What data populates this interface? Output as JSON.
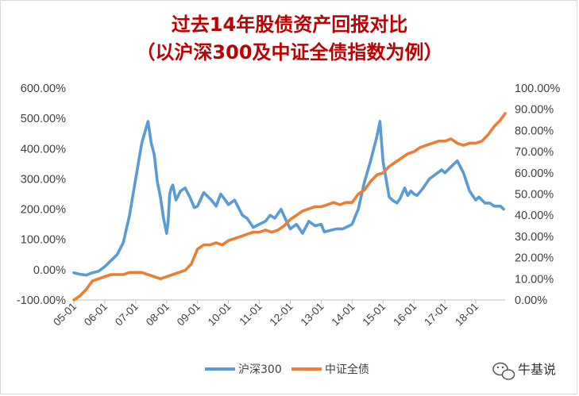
{
  "chart_data": {
    "type": "line",
    "title": "过去14年股债资产回报对比",
    "subtitle": "（以沪深300及中证全债指数为例）",
    "x_tick_labels": [
      "05-01",
      "06-01",
      "07-01",
      "08-01",
      "09-01",
      "10-01",
      "11-01",
      "12-01",
      "13-01",
      "14-01",
      "15-01",
      "16-01",
      "17-01",
      "18-01"
    ],
    "y_left": {
      "ticks": [
        "600.00%",
        "500.00%",
        "400.00%",
        "300.00%",
        "200.00%",
        "100.00%",
        "0.00%",
        "-100.00%"
      ],
      "ylim": [
        -100,
        600
      ]
    },
    "y_right": {
      "ticks": [
        "100.00%",
        "90.00%",
        "80.00%",
        "70.00%",
        "60.00%",
        "50.00%",
        "40.00%",
        "30.00%",
        "20.00%",
        "10.00%",
        "0.00%"
      ],
      "ylim": [
        0,
        100
      ]
    },
    "legend_position": "bottom",
    "series": [
      {
        "name": "沪深300",
        "axis": "left",
        "color": "#5b9bd5",
        "x": [
          2005.0,
          2005.2,
          2005.4,
          2005.6,
          2005.8,
          2006.0,
          2006.2,
          2006.4,
          2006.6,
          2006.8,
          2007.0,
          2007.2,
          2007.4,
          2007.5,
          2007.6,
          2007.7,
          2007.8,
          2007.9,
          2008.0,
          2008.05,
          2008.1,
          2008.15,
          2008.2,
          2008.3,
          2008.45,
          2008.6,
          2008.75,
          2008.9,
          2009.0,
          2009.2,
          2009.45,
          2009.6,
          2009.75,
          2009.9,
          2010.0,
          2010.2,
          2010.45,
          2010.6,
          2010.8,
          2011.0,
          2011.2,
          2011.35,
          2011.5,
          2011.7,
          2011.9,
          2012.0,
          2012.2,
          2012.4,
          2012.6,
          2012.8,
          2013.0,
          2013.1,
          2013.3,
          2013.5,
          2013.7,
          2013.9,
          2014.0,
          2014.2,
          2014.4,
          2014.6,
          2014.8,
          2014.9,
          2015.0,
          2015.1,
          2015.2,
          2015.3,
          2015.45,
          2015.55,
          2015.7,
          2015.8,
          2015.9,
          2016.0,
          2016.1,
          2016.3,
          2016.5,
          2016.7,
          2016.9,
          2017.0,
          2017.2,
          2017.4,
          2017.6,
          2017.8,
          2018.0,
          2018.1,
          2018.3,
          2018.45,
          2018.6,
          2018.8,
          2018.9
        ],
        "values": [
          -10,
          -15,
          -18,
          -10,
          -5,
          10,
          30,
          50,
          90,
          180,
          300,
          420,
          490,
          420,
          380,
          290,
          240,
          170,
          120,
          160,
          250,
          270,
          280,
          230,
          260,
          270,
          240,
          205,
          210,
          255,
          230,
          210,
          250,
          230,
          215,
          230,
          180,
          170,
          140,
          150,
          160,
          180,
          170,
          200,
          155,
          135,
          150,
          120,
          160,
          145,
          150,
          125,
          130,
          135,
          135,
          145,
          150,
          200,
          290,
          360,
          440,
          490,
          360,
          300,
          240,
          230,
          220,
          235,
          270,
          245,
          260,
          250,
          245,
          270,
          300,
          315,
          330,
          320,
          340,
          360,
          320,
          260,
          230,
          240,
          220,
          220,
          210,
          210,
          200
        ]
      },
      {
        "name": "中证全债",
        "axis": "right",
        "color": "#ed7d31",
        "x": [
          2005.0,
          2005.2,
          2005.4,
          2005.6,
          2005.8,
          2006.0,
          2006.2,
          2006.4,
          2006.6,
          2006.8,
          2007.0,
          2007.2,
          2007.4,
          2007.6,
          2007.8,
          2008.0,
          2008.2,
          2008.4,
          2008.6,
          2008.8,
          2009.0,
          2009.2,
          2009.4,
          2009.6,
          2009.8,
          2010.0,
          2010.2,
          2010.4,
          2010.6,
          2010.8,
          2011.0,
          2011.2,
          2011.4,
          2011.6,
          2011.8,
          2012.0,
          2012.2,
          2012.4,
          2012.6,
          2012.8,
          2013.0,
          2013.2,
          2013.4,
          2013.6,
          2013.8,
          2014.0,
          2014.2,
          2014.4,
          2014.6,
          2014.8,
          2015.0,
          2015.2,
          2015.4,
          2015.6,
          2015.8,
          2016.0,
          2016.2,
          2016.4,
          2016.6,
          2016.8,
          2017.0,
          2017.2,
          2017.4,
          2017.6,
          2017.8,
          2018.0,
          2018.2,
          2018.4,
          2018.6,
          2018.8,
          2018.95
        ],
        "values": [
          0,
          2,
          5,
          9,
          10,
          11,
          12,
          12,
          12,
          13,
          13,
          13,
          12,
          11,
          10,
          11,
          12,
          13,
          14,
          17,
          24,
          26,
          26,
          27,
          26,
          28,
          29,
          30,
          31,
          32,
          32,
          33,
          32,
          33,
          35,
          38,
          40,
          42,
          43,
          44,
          44,
          45,
          46,
          45,
          46,
          46,
          50,
          52,
          56,
          59,
          60,
          63,
          65,
          67,
          69,
          70,
          72,
          73,
          74,
          75,
          75,
          76,
          74,
          73,
          74,
          74,
          75,
          78,
          82,
          85,
          88
        ]
      }
    ]
  },
  "legend": {
    "series1": "沪深300",
    "series2": "中证全债"
  },
  "watermark": {
    "text": "牛基说",
    "icon": "wechat-icon"
  }
}
